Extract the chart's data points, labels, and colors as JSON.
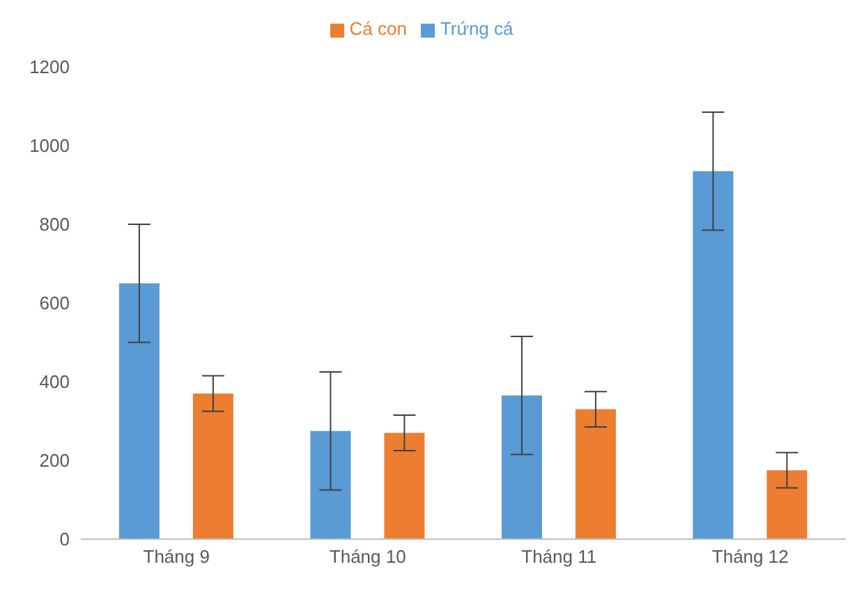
{
  "chart_data": {
    "type": "bar",
    "categories": [
      "Tháng 9",
      "Tháng 10",
      "Tháng 11",
      "Tháng 12"
    ],
    "series": [
      {
        "name": "Trứng cá",
        "color": "#5b9bd5",
        "values": [
          650,
          275,
          365,
          935
        ],
        "errors": [
          150,
          150,
          150,
          150
        ]
      },
      {
        "name": "Cá con",
        "color": "#ed7d31",
        "values": [
          370,
          270,
          330,
          175
        ],
        "errors": [
          45,
          45,
          45,
          45
        ]
      }
    ],
    "ylim": [
      0,
      1200
    ],
    "yticks": [
      0,
      200,
      400,
      600,
      800,
      1000,
      1200
    ],
    "grid": false,
    "legend": "top"
  }
}
